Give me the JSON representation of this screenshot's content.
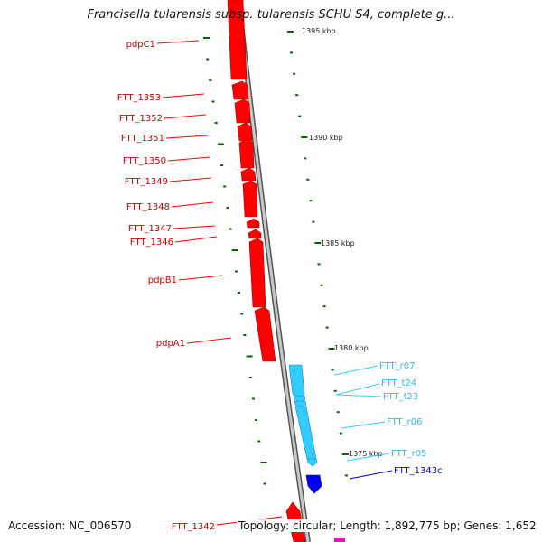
{
  "title": "Francisella tularensis subsp. tularensis SCHU S4, complete g...",
  "footer": {
    "accession": "Accession: NC_006570",
    "topology": "Topology: circular; Length: 1,892,775 bp; Genes: 1,652"
  },
  "ruler_ticks": [
    "1395 kbp",
    "1390 kbp",
    "1385 kbp",
    "1380 kbp",
    "1375 kbp"
  ],
  "genes_left": [
    "pdpC1",
    "FTT_1353",
    "FTT_1352",
    "FTT_1351",
    "FTT_1350",
    "FTT_1349",
    "FTT_1348",
    "FTT_1347",
    "FTT_1346",
    "pdpB1",
    "pdpA1",
    "FTT_1342"
  ],
  "genes_right": [
    "FTT_r07",
    "FTT_t24",
    "FTT_t23",
    "FTT_r06",
    "FTT_r05",
    "FTT_1343c"
  ],
  "colors": {
    "gene_red": "#ff0000",
    "rna_lightblue": "#33ccff",
    "gene_blue": "#0000ee",
    "gene_magenta": "#ff00cc",
    "backbone": "#888888",
    "tick_green": "#006600",
    "label_dark": "#222222"
  }
}
